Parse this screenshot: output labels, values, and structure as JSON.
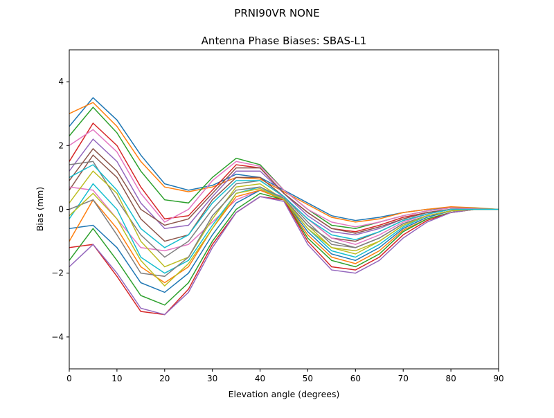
{
  "chart_data": {
    "type": "line",
    "suptitle": "PRNI90VR        NONE",
    "title": "Antenna Phase Biases: SBAS-L1",
    "xlabel": "Elevation angle (degrees)",
    "ylabel": "Bias (mm)",
    "xlim": [
      0,
      90
    ],
    "ylim": [
      -5,
      5
    ],
    "xticks": [
      0,
      10,
      20,
      30,
      40,
      50,
      60,
      70,
      80,
      90
    ],
    "yticks": [
      -4,
      -2,
      0,
      2,
      4
    ],
    "grid": false,
    "legend": "none",
    "colors": [
      "#1f77b4",
      "#ff7f0e",
      "#2ca02c",
      "#d62728",
      "#9467bd",
      "#8c564b",
      "#e377c2",
      "#7f7f7f",
      "#bcbd22",
      "#17becf"
    ],
    "x": [
      0,
      5,
      10,
      15,
      20,
      25,
      30,
      35,
      40,
      45,
      50,
      55,
      60,
      65,
      70,
      75,
      80,
      85,
      90
    ],
    "series": [
      {
        "values": [
          2.6,
          3.5,
          2.8,
          1.7,
          0.8,
          0.6,
          0.75,
          1.1,
          1.0,
          0.6,
          0.2,
          -0.2,
          -0.35,
          -0.25,
          -0.1,
          0,
          0.05,
          0.03,
          0
        ]
      },
      {
        "values": [
          3.0,
          3.35,
          2.6,
          1.5,
          0.7,
          0.55,
          0.7,
          1.0,
          0.95,
          0.55,
          0.15,
          -0.25,
          -0.4,
          -0.3,
          -0.1,
          0,
          0.08,
          0.05,
          0
        ]
      },
      {
        "values": [
          2.3,
          3.2,
          2.4,
          1.2,
          0.3,
          0.2,
          1.0,
          1.6,
          1.4,
          0.6,
          0.0,
          -0.5,
          -0.6,
          -0.4,
          -0.2,
          -0.05,
          0.05,
          0.03,
          0
        ]
      },
      {
        "values": [
          1.5,
          2.7,
          2.0,
          0.7,
          -0.3,
          -0.2,
          0.6,
          1.4,
          1.3,
          0.5,
          -0.1,
          -0.6,
          -0.7,
          -0.5,
          -0.25,
          -0.1,
          0,
          0,
          0
        ]
      },
      {
        "values": [
          1.2,
          2.2,
          1.5,
          0.2,
          -0.6,
          -0.5,
          0.4,
          1.2,
          1.2,
          0.5,
          -0.2,
          -0.7,
          -0.8,
          -0.6,
          -0.3,
          -0.1,
          0,
          0,
          0
        ]
      },
      {
        "values": [
          0.6,
          1.7,
          1.0,
          -0.3,
          -1.0,
          -0.8,
          0.3,
          1.0,
          1.0,
          0.4,
          -0.3,
          -0.9,
          -1.0,
          -0.7,
          -0.35,
          -0.15,
          0,
          0,
          0
        ]
      },
      {
        "values": [
          0.7,
          0.6,
          -0.3,
          -1.2,
          -1.3,
          -1.1,
          -0.4,
          0.3,
          0.6,
          0.4,
          -0.3,
          -0.9,
          -1.1,
          -0.8,
          -0.4,
          -0.15,
          0,
          0,
          0
        ]
      },
      {
        "values": [
          1.4,
          1.5,
          0.3,
          -0.8,
          -1.5,
          -1.0,
          0.0,
          0.8,
          0.9,
          0.4,
          -0.4,
          -1.1,
          -1.2,
          -0.9,
          -0.45,
          -0.2,
          -0.05,
          0,
          0
        ]
      },
      {
        "values": [
          0.2,
          1.2,
          0.5,
          -1.0,
          -1.8,
          -1.5,
          -0.3,
          0.7,
          0.8,
          0.3,
          -0.5,
          -1.2,
          -1.4,
          -1.0,
          -0.5,
          -0.2,
          -0.05,
          0,
          0
        ]
      },
      {
        "values": [
          -0.3,
          0.8,
          0.0,
          -1.5,
          -2.0,
          -1.6,
          -0.5,
          0.5,
          0.7,
          0.3,
          -0.6,
          -1.3,
          -1.5,
          -1.1,
          -0.55,
          -0.2,
          -0.05,
          0,
          0
        ]
      },
      {
        "values": [
          -0.6,
          -0.5,
          -1.2,
          -2.3,
          -2.6,
          -2.0,
          -0.8,
          0.2,
          0.6,
          0.3,
          -0.7,
          -1.4,
          -1.6,
          -1.2,
          -0.6,
          -0.25,
          -0.05,
          0,
          0
        ]
      },
      {
        "values": [
          -1.0,
          0.3,
          -0.6,
          -1.8,
          -2.3,
          -1.8,
          -0.6,
          0.4,
          0.6,
          0.3,
          -0.8,
          -1.5,
          -1.7,
          -1.3,
          -0.65,
          -0.3,
          -0.1,
          0,
          0
        ]
      },
      {
        "values": [
          -1.6,
          -0.6,
          -1.6,
          -2.7,
          -3.0,
          -2.3,
          -1.0,
          0.0,
          0.5,
          0.3,
          -0.9,
          -1.6,
          -1.8,
          -1.4,
          -0.7,
          -0.3,
          -0.1,
          0,
          0
        ]
      },
      {
        "values": [
          -1.2,
          -1.1,
          -2.1,
          -3.2,
          -3.3,
          -2.5,
          -1.1,
          -0.1,
          0.4,
          0.3,
          -1.0,
          -1.8,
          -1.9,
          -1.5,
          -0.8,
          -0.35,
          -0.1,
          0,
          0
        ]
      },
      {
        "values": [
          -1.8,
          -1.1,
          -2.0,
          -3.1,
          -3.3,
          -2.6,
          -1.2,
          -0.1,
          0.4,
          0.25,
          -1.1,
          -1.9,
          -2.0,
          -1.6,
          -0.9,
          -0.4,
          -0.1,
          0,
          0
        ]
      },
      {
        "values": [
          0.9,
          1.9,
          1.2,
          0.0,
          -0.5,
          -0.3,
          0.5,
          1.3,
          1.3,
          0.5,
          -0.1,
          -0.6,
          -0.75,
          -0.55,
          -0.3,
          -0.1,
          0,
          0,
          0
        ]
      },
      {
        "values": [
          2.0,
          2.5,
          1.8,
          0.5,
          -0.4,
          0.0,
          0.9,
          1.5,
          1.35,
          0.6,
          0.0,
          -0.4,
          -0.55,
          -0.4,
          -0.2,
          -0.05,
          0.05,
          0.02,
          0
        ]
      },
      {
        "values": [
          0.0,
          0.3,
          -0.8,
          -2.0,
          -2.1,
          -1.5,
          -0.2,
          0.6,
          0.7,
          0.35,
          -0.5,
          -1.0,
          -1.2,
          -0.9,
          -0.45,
          -0.2,
          -0.05,
          0,
          0
        ]
      },
      {
        "values": [
          -0.2,
          0.5,
          -0.3,
          -1.6,
          -2.4,
          -1.7,
          -0.6,
          0.5,
          0.65,
          0.3,
          -0.6,
          -1.2,
          -1.3,
          -1.0,
          -0.5,
          -0.2,
          -0.05,
          0,
          0
        ]
      },
      {
        "values": [
          1.0,
          1.4,
          0.6,
          -0.6,
          -1.2,
          -0.8,
          0.2,
          0.9,
          0.9,
          0.4,
          -0.3,
          -0.8,
          -0.95,
          -0.7,
          -0.35,
          -0.15,
          0,
          0,
          0
        ]
      }
    ]
  }
}
